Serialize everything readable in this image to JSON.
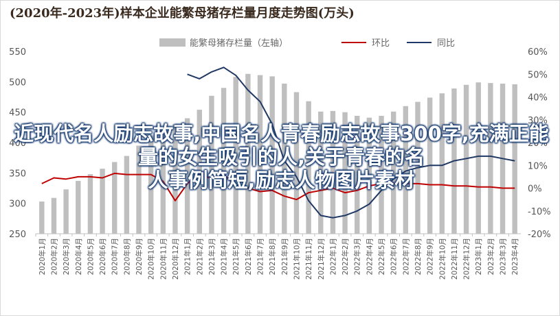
{
  "chart_data": {
    "type": "bar+line",
    "title": "(2020年-2023年)样本企业能繁母猪存栏量月度走势图(万头)",
    "categories": [
      "2020年1月",
      "2020年2月",
      "2020年3月",
      "2020年4月",
      "2020年5月",
      "2020年6月",
      "2020年7月",
      "2020年8月",
      "2020年9月",
      "2020年10月",
      "2020年11月",
      "2020年12月",
      "2021年1月",
      "2021年2月",
      "2021年3月",
      "2021年4月",
      "2021年5月",
      "2021年6月",
      "2021年7月",
      "2021年8月",
      "2021年9月",
      "2021年10月",
      "2021年11月",
      "2021年12月",
      "2022年1月",
      "2022年2月",
      "2022年3月",
      "2022年4月",
      "2022年5月",
      "2022年6月",
      "2022年7月",
      "2022年8月",
      "2022年9月",
      "2022年10月",
      "2022年11月",
      "2022年12月",
      "2023年1月",
      "2023年2月",
      "2023年3月",
      "2023年4月"
    ],
    "left_axis": {
      "min": 250,
      "max": 550,
      "step": 50,
      "ticks": [
        "250",
        "300",
        "350",
        "400",
        "450",
        "500",
        "550"
      ]
    },
    "right_axis": {
      "min": -20,
      "max": 60,
      "step": 10,
      "ticks": [
        "-20%",
        "-10%",
        "0%",
        "10%",
        "20%",
        "30%",
        "40%",
        "50%",
        "60%"
      ]
    },
    "legend_position": "top",
    "series": [
      {
        "name": "能繁母猪存栏量（左轴）",
        "kind": "bar",
        "axis": "left",
        "color": "#bfbfbf",
        "values": [
          303,
          309,
          323,
          337,
          348,
          357,
          368,
          378,
          395,
          412,
          420,
          430,
          440,
          454,
          477,
          490,
          508,
          513,
          511,
          509,
          497,
          483,
          468,
          451,
          452,
          450,
          444,
          441,
          444,
          451,
          460,
          467,
          474,
          481,
          489,
          495,
          499,
          498,
          497,
          496
        ]
      },
      {
        "name": "环比",
        "kind": "line",
        "axis": "right",
        "color": "#c00000",
        "values": [
          2.0,
          4.5,
          4.0,
          5.0,
          5.0,
          4.5,
          6.5,
          6.0,
          6.0,
          6.0,
          3.0,
          -5.5,
          2.0,
          6.5,
          4.0,
          6.0,
          1.0,
          0.0,
          -1.5,
          -1.0,
          -3.5,
          -5.0,
          -2.0,
          -1.0,
          0.0,
          -2.0,
          -1.0,
          1.0,
          2.0,
          2.0,
          2.0,
          2.0,
          1.5,
          1.5,
          1.0,
          1.0,
          0.5,
          0.5,
          0.0,
          0.0
        ]
      },
      {
        "name": "同比",
        "kind": "line",
        "axis": "right",
        "color": "#1f3864",
        "values": [
          null,
          null,
          null,
          null,
          null,
          null,
          null,
          null,
          null,
          null,
          null,
          null,
          50,
          48,
          51,
          53,
          49.5,
          43,
          38,
          28,
          12,
          5,
          -5.5,
          -12,
          -13,
          -12,
          -10,
          -7,
          -1,
          4,
          7.5,
          9,
          10,
          10,
          12,
          13,
          14,
          14,
          13,
          12
        ]
      }
    ]
  },
  "overlay_text": [
    "近现代名人励志故事,中国名人青春励志故事300字,充满正能量的女生吸引的人,关于青春的名",
    "人事例简短,励志人物图片素材"
  ]
}
